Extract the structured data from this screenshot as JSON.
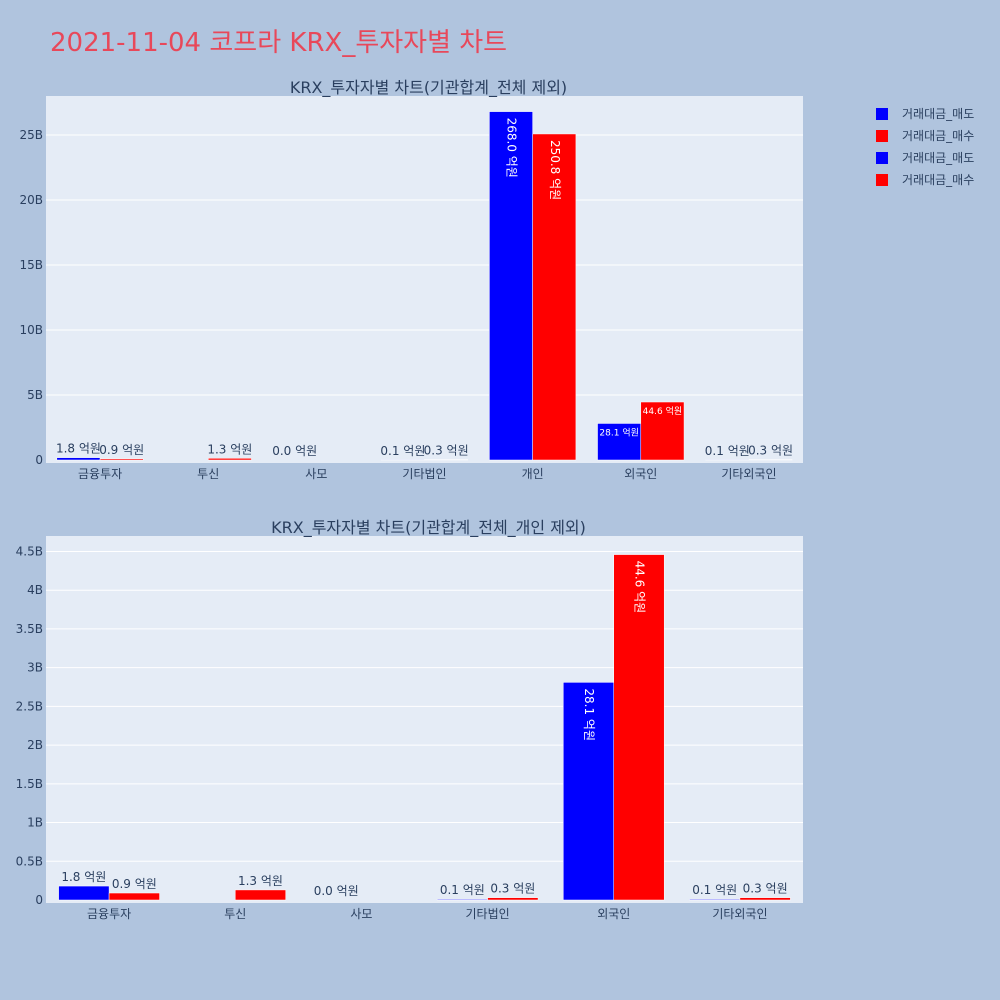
{
  "title": "2021-11-04 코프라 KRX_투자자별 차트",
  "colors": {
    "sell": "#0000ff",
    "buy": "#ff0000",
    "plot_bg": "#e5ecf6",
    "page_bg": "#b0c4de",
    "title": "#e8485a",
    "text": "#2a3f5f"
  },
  "legend": {
    "placement": "top-right",
    "items": [
      {
        "label": "거래대금_매도",
        "color": "#0000ff"
      },
      {
        "label": "거래대금_매수",
        "color": "#ff0000"
      },
      {
        "label": "거래대금_매도",
        "color": "#0000ff"
      },
      {
        "label": "거래대금_매수",
        "color": "#ff0000"
      }
    ]
  },
  "chart_data": [
    {
      "type": "bar",
      "title": "KRX_투자자별 차트(기관합계_전체 제외)",
      "categories": [
        "금융투자",
        "투신",
        "사모",
        "기타법인",
        "개인",
        "외국인",
        "기타외국인"
      ],
      "series": [
        {
          "name": "거래대금_매도",
          "color": "#0000ff",
          "values": [
            180000000,
            0,
            0,
            10000000,
            26800000000,
            2810000000,
            10000000
          ],
          "labels": [
            "1.8 억원",
            "",
            "0.0 억원",
            "0.1 억원",
            "268.0 억원",
            "28.1 억원",
            "0.1 억원"
          ]
        },
        {
          "name": "거래대금_매수",
          "color": "#ff0000",
          "values": [
            90000000,
            130000000,
            0,
            30000000,
            25080000000,
            4460000000,
            30000000
          ],
          "labels": [
            "0.9 억원",
            "1.3 억원",
            "",
            "0.3 억원",
            "250.8 억원",
            "44.6 억원",
            "0.3 억원"
          ]
        }
      ],
      "ylim": [
        0,
        28000000000
      ],
      "yticks": [
        0,
        5000000000,
        10000000000,
        15000000000,
        20000000000,
        25000000000
      ],
      "ytick_labels": [
        "0",
        "5B",
        "10B",
        "15B",
        "20B",
        "25B"
      ],
      "grid": true
    },
    {
      "type": "bar",
      "title": "KRX_투자자별 차트(기관합계_전체_개인 제외)",
      "categories": [
        "금융투자",
        "투신",
        "사모",
        "기타법인",
        "외국인",
        "기타외국인"
      ],
      "series": [
        {
          "name": "거래대금_매도",
          "color": "#0000ff",
          "values": [
            180000000,
            0,
            0,
            10000000,
            2810000000,
            10000000
          ],
          "labels": [
            "1.8 억원",
            "",
            "0.0 억원",
            "0.1 억원",
            "28.1 억원",
            "0.1 억원"
          ]
        },
        {
          "name": "거래대금_매수",
          "color": "#ff0000",
          "values": [
            90000000,
            130000000,
            0,
            30000000,
            4460000000,
            30000000
          ],
          "labels": [
            "0.9 억원",
            "1.3 억원",
            "",
            "0.3 억원",
            "44.6 억원",
            "0.3 억원"
          ]
        }
      ],
      "ylim": [
        0,
        4700000000
      ],
      "yticks": [
        0,
        500000000,
        1000000000,
        1500000000,
        2000000000,
        2500000000,
        3000000000,
        3500000000,
        4000000000,
        4500000000
      ],
      "ytick_labels": [
        "0",
        "0.5B",
        "1B",
        "1.5B",
        "2B",
        "2.5B",
        "3B",
        "3.5B",
        "4B",
        "4.5B"
      ],
      "grid": true
    }
  ]
}
